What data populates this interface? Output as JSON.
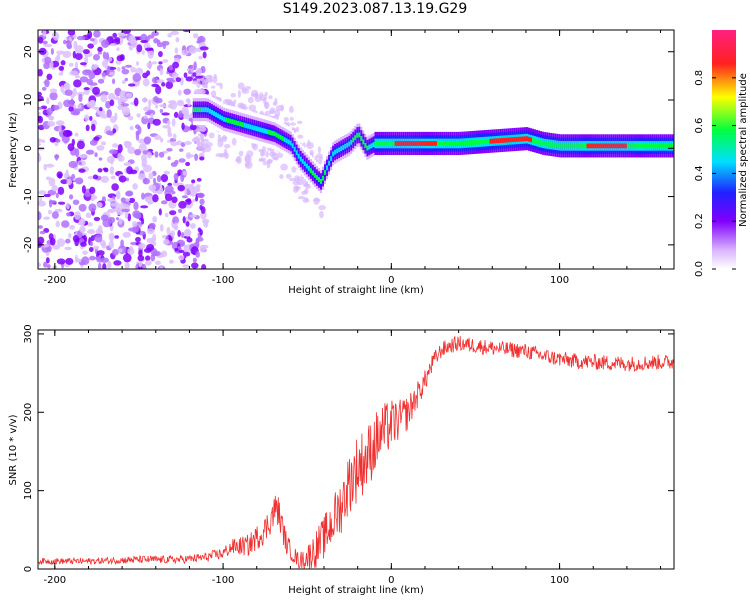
{
  "title": "S149.2023.087.13.19.G29",
  "colors": {
    "snr_line": "#f03030",
    "axis": "#000000",
    "colormap": [
      "#ffffff",
      "#d9b3ff",
      "#8000ff",
      "#2020ff",
      "#00e0ff",
      "#00ff40",
      "#ffff00",
      "#ff2020",
      "#ff2080"
    ]
  },
  "chart_data": [
    {
      "type": "heatmap",
      "xlabel": "Height of straight line (km)",
      "ylabel": "Frequency (Hz)",
      "xlim": [
        -210,
        168
      ],
      "ylim": [
        -25,
        24.5
      ],
      "xticks": [
        -200,
        -100,
        0,
        100
      ],
      "yticks": [
        -20,
        -10,
        0,
        10,
        20
      ],
      "grid": false,
      "ridge": {
        "x": [
          -120,
          -110,
          -100,
          -90,
          -80,
          -70,
          -60,
          -55,
          -50,
          -45,
          -42,
          -40,
          -35,
          -30,
          -25,
          -20,
          -15,
          -10,
          0,
          20,
          40,
          60,
          80,
          90,
          100,
          120,
          140,
          168
        ],
        "y": [
          8,
          8,
          6,
          5,
          4,
          3,
          1,
          -2,
          -4,
          -6,
          -7,
          -5,
          -1,
          0,
          1,
          3,
          0,
          1,
          1,
          1,
          1,
          1.5,
          2,
          1,
          0.5,
          0.5,
          0.5,
          0.5
        ]
      },
      "colorbar": {
        "label": "Normalized spectral amplitude",
        "range": [
          0,
          1
        ],
        "ticks": [
          "0.0",
          "0.2",
          "0.4",
          "0.6",
          "0.8"
        ]
      }
    },
    {
      "type": "line",
      "xlabel": "Height of straight line (km)",
      "ylabel": "SNR (10 * v/v)",
      "xlim": [
        -210,
        168
      ],
      "ylim": [
        0,
        305
      ],
      "xticks": [
        -200,
        -100,
        0,
        100
      ],
      "yticks": [
        0,
        100,
        200,
        300
      ],
      "grid": false,
      "series": [
        {
          "x": [
            -210,
            -180,
            -150,
            -125,
            -110,
            -100,
            -95,
            -85,
            -75,
            -68,
            -62,
            -55,
            -50,
            -45,
            -40,
            -35,
            -30,
            -25,
            -20,
            -15,
            -10,
            -5,
            0,
            5,
            10,
            15,
            20,
            25,
            30,
            35,
            40,
            50,
            60,
            70,
            80,
            90,
            100,
            110,
            120,
            130,
            140,
            150,
            160,
            168
          ],
          "values": [
            10,
            10,
            12,
            12,
            15,
            20,
            28,
            30,
            50,
            80,
            30,
            10,
            15,
            25,
            40,
            60,
            80,
            110,
            130,
            140,
            160,
            175,
            185,
            190,
            200,
            220,
            240,
            265,
            280,
            285,
            288,
            285,
            282,
            280,
            278,
            272,
            268,
            265,
            264,
            263,
            262,
            263,
            264,
            264
          ],
          "noise": [
            4,
            4,
            5,
            5,
            6,
            8,
            10,
            14,
            18,
            22,
            14,
            10,
            16,
            24,
            28,
            32,
            36,
            40,
            44,
            42,
            40,
            36,
            32,
            26,
            22,
            18,
            14,
            12,
            10,
            10,
            10,
            10,
            10,
            10,
            10,
            10,
            10,
            10,
            10,
            10,
            10,
            10,
            10,
            10
          ]
        }
      ]
    }
  ]
}
